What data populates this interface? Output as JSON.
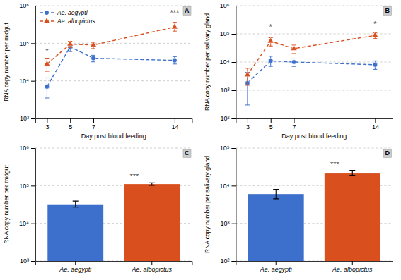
{
  "chart_data": [
    {
      "type": "line",
      "title": "A",
      "xlabel": "Day post blood feeding",
      "ylabel": "RNA copy number per midgut",
      "x": [
        3,
        5,
        7,
        14
      ],
      "xlim": [
        2,
        15.5
      ],
      "xticks": [
        3,
        5,
        7,
        14
      ],
      "log": "y",
      "ylim": [
        1000,
        1000000
      ],
      "yticks": [
        {
          "value": 1000,
          "label": "10³"
        },
        {
          "value": 10000,
          "label": "10⁴"
        },
        {
          "value": 100000,
          "label": "10⁵"
        },
        {
          "value": 1000000,
          "label": "10⁶"
        }
      ],
      "grid": true,
      "legend": "upper left",
      "series": [
        {
          "name": "Ae. aegypti",
          "color": "#3d6fcc",
          "marker": "circle",
          "line_style": "dashed",
          "values": [
            7000,
            80000,
            40000,
            35000
          ],
          "err_lo": [
            3500,
            20000,
            8000,
            7000
          ],
          "err_hi": [
            5000,
            15000,
            8000,
            9000
          ]
        },
        {
          "name": "Ae. albopictus",
          "color": "#d94f1e",
          "marker": "triangle",
          "line_style": "dashed",
          "values": [
            28000,
            95000,
            90000,
            270000
          ],
          "err_lo": [
            10000,
            18000,
            18000,
            60000
          ],
          "err_hi": [
            12000,
            18000,
            15000,
            90000
          ]
        }
      ],
      "annotations": [
        {
          "text": "*",
          "x": 3,
          "y": 50000
        },
        {
          "text": "***",
          "x": 14,
          "y": 540000
        }
      ]
    },
    {
      "type": "line",
      "title": "B",
      "xlabel": "Day post blood feeding",
      "ylabel": "RNA copy number per salivary gland",
      "x": [
        3,
        5,
        7,
        14
      ],
      "xlim": [
        2,
        15.5
      ],
      "xticks": [
        3,
        5,
        7,
        14
      ],
      "log": "y",
      "ylim": [
        100,
        1000000
      ],
      "yticks": [
        {
          "value": 100,
          "label": "10²"
        },
        {
          "value": 1000,
          "label": "10³"
        },
        {
          "value": 10000,
          "label": "10⁴"
        },
        {
          "value": 100000,
          "label": "10⁵"
        },
        {
          "value": 1000000,
          "label": "10⁶"
        }
      ],
      "grid": true,
      "series": [
        {
          "name": "Ae. aegypti",
          "color": "#3d6fcc",
          "marker": "circle",
          "line_style": "dashed",
          "values": [
            1800,
            11000,
            10000,
            8000
          ],
          "err_lo": [
            1500,
            4000,
            3000,
            2500
          ],
          "err_hi": [
            2500,
            5000,
            3000,
            3000
          ]
        },
        {
          "name": "Ae. albopictus",
          "color": "#d94f1e",
          "marker": "triangle",
          "line_style": "dashed",
          "values": [
            3500,
            55000,
            30000,
            88000
          ],
          "err_lo": [
            2000,
            18000,
            10000,
            20000
          ],
          "err_hi": [
            2500,
            18000,
            10000,
            22000
          ]
        }
      ],
      "annotations": [
        {
          "text": "*",
          "x": 5,
          "y": 137500
        },
        {
          "text": "*",
          "x": 14,
          "y": 176000
        }
      ]
    },
    {
      "type": "bar",
      "title": "C",
      "ylabel": "RNA copy number per midgut",
      "categories": [
        "Ae. aegypti",
        "Ae. albopictus"
      ],
      "values": [
        32000,
        110000
      ],
      "err_lo": [
        5000,
        8000
      ],
      "err_hi": [
        7000,
        9000
      ],
      "colors": [
        "#3d6fcc",
        "#d94f1e"
      ],
      "log": "y",
      "ylim": [
        1000,
        1000000
      ],
      "yticks": [
        {
          "value": 1000,
          "label": "10³"
        },
        {
          "value": 10000,
          "label": "10⁴"
        },
        {
          "value": 100000,
          "label": "10⁵"
        },
        {
          "value": 1000000,
          "label": "10⁶"
        }
      ],
      "grid": true,
      "annotations": [
        {
          "text": "***",
          "category": "Ae. albopictus",
          "y": 148500
        }
      ]
    },
    {
      "type": "bar",
      "title": "D",
      "ylabel": "RNA copy number per salivary gland",
      "categories": [
        "Ae. aegypti",
        "Ae. albopictus"
      ],
      "values": [
        6000,
        22000
      ],
      "err_lo": [
        1500,
        3000
      ],
      "err_hi": [
        2000,
        3500
      ],
      "colors": [
        "#3d6fcc",
        "#d94f1e"
      ],
      "log": "y",
      "ylim": [
        100,
        100000
      ],
      "yticks": [
        {
          "value": 100,
          "label": "10²"
        },
        {
          "value": 1000,
          "label": "10³"
        },
        {
          "value": 10000,
          "label": "10⁴"
        },
        {
          "value": 100000,
          "label": "10⁵"
        }
      ],
      "grid": true,
      "annotations": [
        {
          "text": "***",
          "category": "Ae. albopictus",
          "y": 30800
        }
      ]
    }
  ]
}
